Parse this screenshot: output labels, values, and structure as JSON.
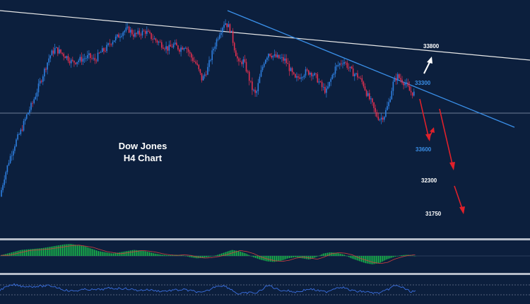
{
  "chart_data": {
    "type": "candlestick",
    "title": [
      "Dow Jones",
      "H4 Chart"
    ],
    "colors": {
      "background": "#0c1f3d",
      "up": "#2e7fe0",
      "down": "#e03050",
      "trendline": "#3a8fe8",
      "resistance": "#ffffff",
      "arrow_down": "#e0202a",
      "osc_fill": "#19b04a"
    },
    "levels": [
      {
        "label": "33800",
        "color": "#ffffff"
      },
      {
        "label": "33300",
        "color": "#3a8fe8"
      },
      {
        "label": "33600",
        "color": "#3a8fe8"
      },
      {
        "label": "32300",
        "color": "#ffffff"
      },
      {
        "label": "31750",
        "color": "#ffffff"
      }
    ],
    "price_path": [
      [
        0,
        0.08
      ],
      [
        6,
        0.18
      ],
      [
        14,
        0.28
      ],
      [
        22,
        0.36
      ],
      [
        30,
        0.42
      ],
      [
        38,
        0.5
      ],
      [
        46,
        0.56
      ],
      [
        54,
        0.64
      ],
      [
        62,
        0.72
      ],
      [
        70,
        0.8
      ],
      [
        78,
        0.84
      ],
      [
        86,
        0.82
      ],
      [
        94,
        0.8
      ],
      [
        102,
        0.77
      ],
      [
        110,
        0.78
      ],
      [
        118,
        0.79
      ],
      [
        126,
        0.8
      ],
      [
        134,
        0.78
      ],
      [
        142,
        0.82
      ],
      [
        150,
        0.84
      ],
      [
        158,
        0.88
      ],
      [
        166,
        0.9
      ],
      [
        174,
        0.93
      ],
      [
        182,
        0.94
      ],
      [
        190,
        0.91
      ],
      [
        198,
        0.92
      ],
      [
        206,
        0.93
      ],
      [
        214,
        0.9
      ],
      [
        222,
        0.88
      ],
      [
        230,
        0.86
      ],
      [
        238,
        0.84
      ],
      [
        246,
        0.86
      ],
      [
        254,
        0.84
      ],
      [
        262,
        0.86
      ],
      [
        270,
        0.8
      ],
      [
        278,
        0.76
      ],
      [
        286,
        0.68
      ],
      [
        294,
        0.74
      ],
      [
        302,
        0.84
      ],
      [
        310,
        0.92
      ],
      [
        318,
        0.98
      ],
      [
        326,
        0.94
      ],
      [
        332,
        0.84
      ],
      [
        338,
        0.76
      ],
      [
        344,
        0.78
      ],
      [
        350,
        0.72
      ],
      [
        356,
        0.64
      ],
      [
        362,
        0.6
      ],
      [
        368,
        0.7
      ],
      [
        374,
        0.78
      ],
      [
        380,
        0.82
      ],
      [
        388,
        0.8
      ],
      [
        396,
        0.79
      ],
      [
        404,
        0.78
      ],
      [
        412,
        0.72
      ],
      [
        418,
        0.68
      ],
      [
        424,
        0.7
      ],
      [
        432,
        0.72
      ],
      [
        440,
        0.72
      ],
      [
        448,
        0.69
      ],
      [
        456,
        0.64
      ],
      [
        462,
        0.62
      ],
      [
        468,
        0.68
      ],
      [
        474,
        0.74
      ],
      [
        480,
        0.76
      ],
      [
        486,
        0.78
      ],
      [
        492,
        0.75
      ],
      [
        498,
        0.72
      ],
      [
        506,
        0.7
      ],
      [
        514,
        0.66
      ],
      [
        520,
        0.6
      ],
      [
        526,
        0.56
      ],
      [
        532,
        0.5
      ],
      [
        538,
        0.48
      ],
      [
        544,
        0.5
      ],
      [
        550,
        0.56
      ],
      [
        556,
        0.66
      ],
      [
        562,
        0.7
      ],
      [
        568,
        0.68
      ],
      [
        574,
        0.66
      ],
      [
        580,
        0.62
      ],
      [
        586,
        0.61
      ]
    ],
    "oscillator": [
      0.05,
      0.2,
      0.35,
      0.5,
      0.55,
      0.6,
      0.65,
      0.75,
      0.85,
      0.95,
      1.0,
      0.9,
      0.8,
      0.6,
      0.4,
      0.3,
      0.2,
      0.3,
      0.4,
      0.5,
      0.45,
      0.35,
      0.2,
      0.1,
      0.05,
      0.1,
      0.05,
      -0.1,
      -0.2,
      -0.15,
      -0.05,
      0.1,
      0.3,
      0.5,
      0.4,
      0.2,
      -0.1,
      -0.3,
      -0.45,
      -0.5,
      -0.4,
      -0.2,
      -0.1,
      -0.2,
      -0.3,
      -0.1,
      0.2,
      0.3,
      0.25,
      0.1,
      -0.2,
      -0.4,
      -0.6,
      -0.7,
      -0.6,
      -0.3,
      -0.1,
      0.05,
      0.1,
      0.0
    ]
  }
}
